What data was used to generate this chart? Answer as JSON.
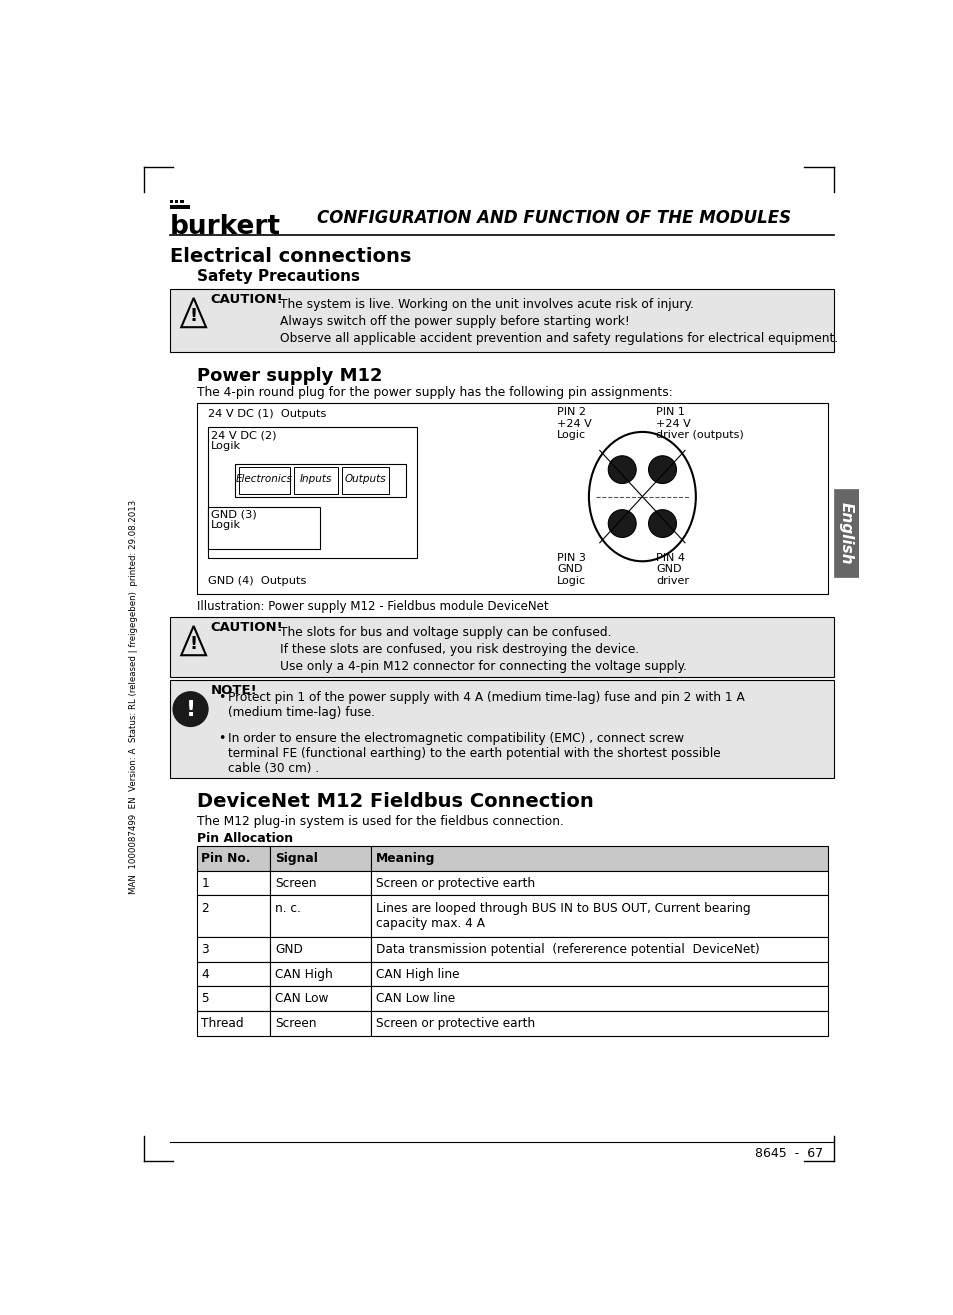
{
  "page_bg": "#ffffff",
  "header_title": "CONFIGURATION AND FUNCTION OF THE MODULES",
  "burkert_text": "burkert",
  "section1_title": "Electrical connections",
  "section1_sub": "Safety Precautions",
  "caution1_text": [
    "The system is live. Working on the unit involves acute risk of injury.",
    "Always switch off the power supply before starting work!",
    "Observe all applicable accident prevention and safety regulations for electrical equipment."
  ],
  "section2_title": "Power supply M12",
  "section2_intro": "The 4-pin round plug for the power supply has the following pin assignments:",
  "illustration_caption": "Illustration: Power supply M12 - Fieldbus module DeviceNet",
  "caution2_text": [
    "The slots for bus and voltage supply can be confused.",
    "If these slots are confused, you risk destroying the device.",
    "Use only a 4-pin M12 connector for connecting the voltage supply."
  ],
  "note_text_1": "Protect pin 1 of the power supply with 4 A (medium time-lag) fuse and pin 2 with 1 A\n(medium time-lag) fuse.",
  "note_text_2": "In order to ensure the electromagnetic compatibility (EMC) , connect screw\nterminal FE (functional earthing) to the earth potential with the shortest possible\ncable (30 cm) .",
  "section3_title": "DeviceNet M12 Fieldbus Connection",
  "section3_intro": "The M12 plug-in system is used for the fieldbus connection.",
  "pin_alloc_title": "Pin Allocation",
  "table_headers": [
    "Pin No.",
    "Signal",
    "Meaning"
  ],
  "table_rows": [
    [
      "1",
      "Screen",
      "Screen or protective earth"
    ],
    [
      "2",
      "n. c.",
      "Lines are looped through BUS IN to BUS OUT, Current bearing\ncapacity max. 4 A"
    ],
    [
      "3",
      "GND",
      "Data transmission potential  (refererence potential  DeviceNet)"
    ],
    [
      "4",
      "CAN High",
      "CAN High line"
    ],
    [
      "5",
      "CAN Low",
      "CAN Low line"
    ],
    [
      "Thread",
      "Screen",
      "Screen or protective earth"
    ]
  ],
  "footer_text": "8645  -  67",
  "side_text": "MAN  1000087499  EN  Version: A  Status: RL (released | freigegeben)  printed: 29.08.2013",
  "english_tab": "English",
  "caution_bg": "#e5e5e5",
  "note_bg": "#e5e5e5",
  "table_header_bg": "#c8c8c8",
  "table_row_bg": "#ffffff"
}
